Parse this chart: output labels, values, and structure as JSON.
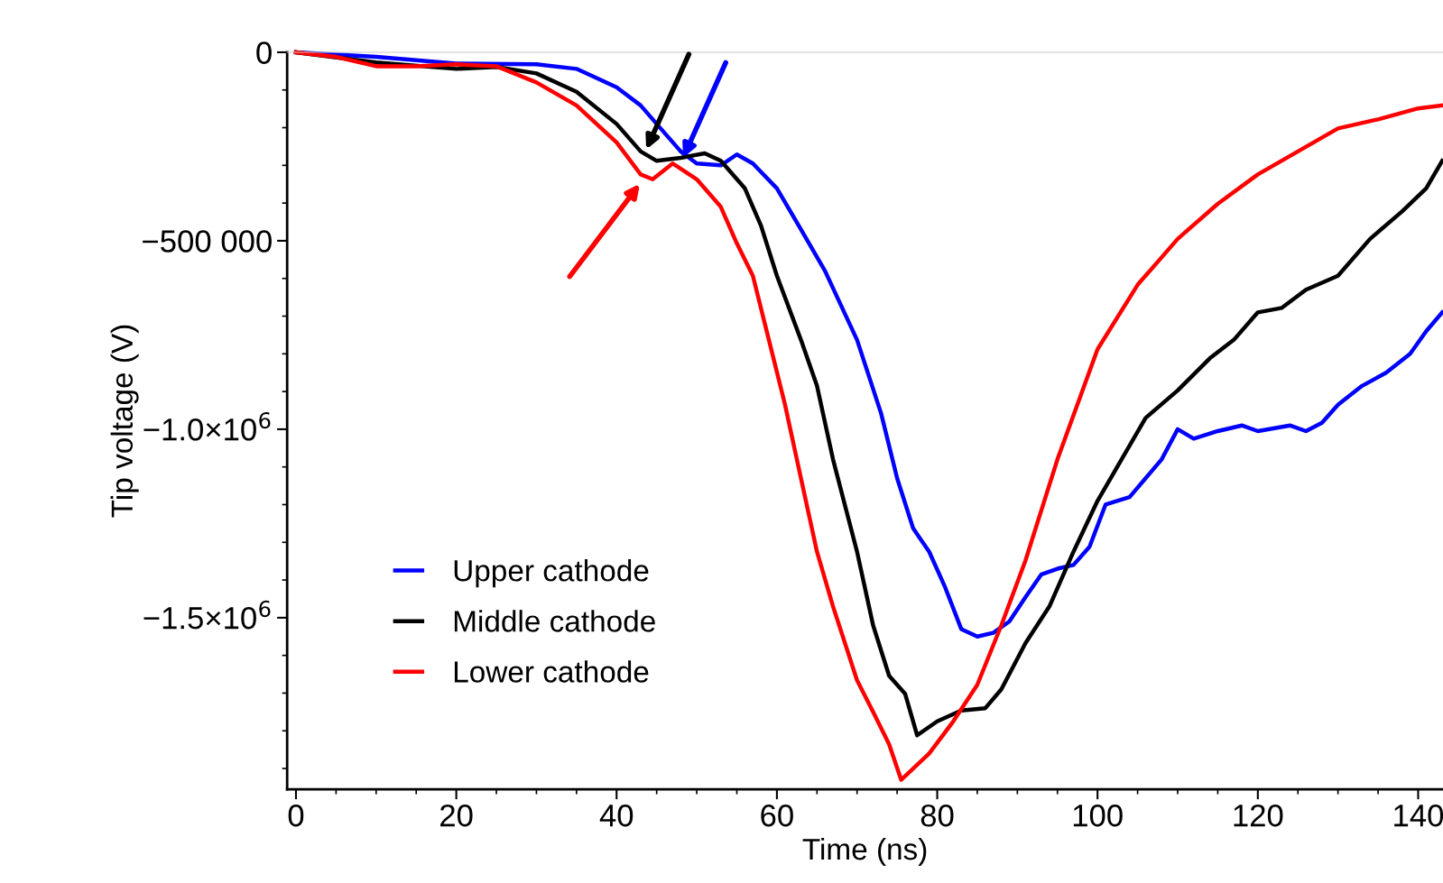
{
  "chart_data": {
    "type": "line",
    "xlabel": "Time (ns)",
    "ylabel": "Tip voltage (V)",
    "xlim": [
      -1.1,
      143.1
    ],
    "ylim": [
      -1955000,
      0
    ],
    "xticks": [
      0,
      20,
      40,
      60,
      80,
      100,
      120,
      140
    ],
    "yticks": [
      0,
      {
        "value": -500000,
        "label": "−500 000"
      },
      {
        "value": -1000000,
        "label": "−1.0×10$^{6}$"
      },
      {
        "value": -1500000,
        "label": "−1.5×10$^{6}$"
      }
    ],
    "grid": false,
    "legend": "bottom left",
    "line_style": "solid",
    "marker": "none",
    "series": [
      {
        "name": "Upper cathode",
        "color": "#0000ff",
        "x": [
          0,
          10,
          20,
          30,
          35,
          40,
          43,
          45,
          48,
          50,
          53,
          55,
          57,
          60,
          63,
          66,
          70,
          73,
          75,
          77,
          79,
          81,
          83,
          85,
          87,
          89,
          91,
          93,
          95,
          97,
          99,
          101,
          104,
          108,
          110,
          112,
          115,
          118,
          120,
          124,
          126,
          128,
          130,
          133,
          136,
          139,
          141,
          143
        ],
        "values": [
          0,
          -12000,
          -30000,
          -32000,
          -44000,
          -93000,
          -141000,
          -190000,
          -263000,
          -295000,
          -300000,
          -271000,
          -295000,
          -361000,
          -470000,
          -580000,
          -763000,
          -958000,
          -1130000,
          -1263000,
          -1325000,
          -1420000,
          -1530000,
          -1550000,
          -1540000,
          -1510000,
          -1446000,
          -1385000,
          -1370000,
          -1360000,
          -1312000,
          -1200000,
          -1180000,
          -1080000,
          -1000000,
          -1025000,
          -1005000,
          -990000,
          -1005000,
          -990000,
          -1005000,
          -983000,
          -935000,
          -885000,
          -850000,
          -800000,
          -740000,
          -690000
        ]
      },
      {
        "name": "Middle cathode",
        "color": "#000000",
        "x": [
          0,
          10,
          20,
          25,
          30,
          35,
          40,
          43,
          45,
          48,
          51,
          53,
          56,
          58,
          60,
          63,
          65,
          67,
          70,
          72,
          74,
          76,
          77.5,
          80,
          83,
          86,
          88,
          91,
          94,
          97,
          100,
          103,
          106,
          110,
          114,
          117,
          120,
          123,
          126,
          130,
          134,
          138,
          141,
          143
        ],
        "values": [
          0,
          -27000,
          -44000,
          -39000,
          -56000,
          -105000,
          -190000,
          -263000,
          -288000,
          -280000,
          -268000,
          -288000,
          -361000,
          -459000,
          -593000,
          -763000,
          -885000,
          -1080000,
          -1325000,
          -1520000,
          -1654000,
          -1702000,
          -1812000,
          -1775000,
          -1746000,
          -1740000,
          -1690000,
          -1568000,
          -1470000,
          -1325000,
          -1190000,
          -1080000,
          -970000,
          -897000,
          -812000,
          -763000,
          -690000,
          -678000,
          -630000,
          -593000,
          -495000,
          -422000,
          -361000,
          -288000
        ]
      },
      {
        "name": "Lower cathode",
        "color": "#ff0000",
        "x": [
          0,
          5,
          10,
          15,
          20,
          25,
          30,
          35,
          40,
          43,
          44.5,
          47,
          50,
          53,
          55,
          57,
          59,
          61,
          63,
          65,
          67,
          70,
          72,
          74,
          75.5,
          77,
          79,
          82,
          85,
          88,
          91,
          95,
          100,
          105,
          110,
          115,
          120,
          125,
          130,
          135,
          140,
          143
        ],
        "values": [
          0,
          -12000,
          -37000,
          -37000,
          -32000,
          -37000,
          -80000,
          -141000,
          -239000,
          -324000,
          -337000,
          -295000,
          -337000,
          -410000,
          -507000,
          -593000,
          -763000,
          -934000,
          -1130000,
          -1325000,
          -1470000,
          -1666000,
          -1750000,
          -1836000,
          -1930000,
          -1900000,
          -1860000,
          -1775000,
          -1678000,
          -1520000,
          -1349000,
          -1080000,
          -788000,
          -617000,
          -495000,
          -402000,
          -324000,
          -263000,
          -202000,
          -178000,
          -149000,
          -141000
        ]
      }
    ]
  }
}
